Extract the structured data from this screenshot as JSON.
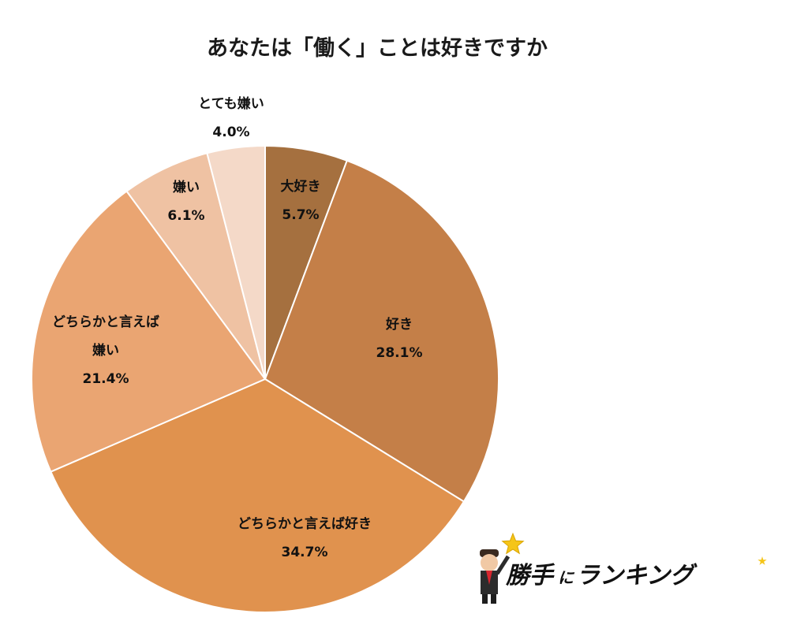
{
  "chart_data": {
    "type": "pie",
    "title": "あなたは「働く」ことは好きですか",
    "start_angle_deg": 0,
    "direction": "clockwise",
    "slices": [
      {
        "label": "大好き",
        "value": 5.7,
        "value_label": "5.7%",
        "color": "#a5703f"
      },
      {
        "label": "好き",
        "value": 28.1,
        "value_label": "28.1%",
        "color": "#c47f48"
      },
      {
        "label": "どちらかと言えば好き",
        "value": 34.7,
        "value_label": "34.7%",
        "color": "#e0924e"
      },
      {
        "label": "どちらかと言えば嫌い",
        "value": 21.4,
        "value_label": "21.4%",
        "color": "#eaa572"
      },
      {
        "label": "嫌い",
        "value": 6.1,
        "value_label": "6.1%",
        "color": "#efc2a3"
      },
      {
        "label": "とても嫌い",
        "value": 4.0,
        "value_label": "4.0%",
        "color": "#f4d9c8"
      }
    ]
  },
  "logo": {
    "text_main": "勝手",
    "text_particle": "に",
    "text_rest": "ランキング",
    "star_color": "#f5c518"
  }
}
